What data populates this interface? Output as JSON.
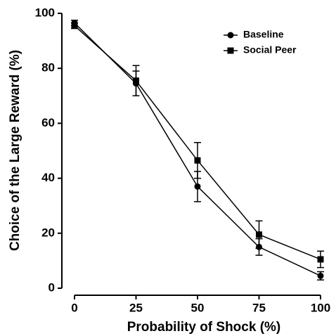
{
  "chart_data": {
    "type": "line",
    "xlabel": "Probability of Shock (%)",
    "ylabel": "Choice of the Large Reward (%)",
    "x": [
      0,
      25,
      50,
      75,
      100
    ],
    "series": [
      {
        "name": "Baseline",
        "color": "#000000",
        "marker": "circle",
        "values": [
          96.5,
          74.5,
          37,
          15,
          4.5
        ],
        "errors": [
          1,
          4.5,
          5.5,
          3,
          1.5
        ]
      },
      {
        "name": "Social Peer",
        "color": "#000000",
        "marker": "square",
        "values": [
          95.5,
          75.5,
          46.5,
          19.5,
          10.5
        ],
        "errors": [
          1,
          5.5,
          6.5,
          5,
          3
        ]
      }
    ],
    "xlim": [
      0,
      100
    ],
    "ylim": [
      0,
      100
    ],
    "xticks": [
      0,
      25,
      50,
      75,
      100
    ],
    "yticks": [
      0,
      20,
      40,
      60,
      80,
      100
    ],
    "legend": "upper right",
    "grid": false
  }
}
